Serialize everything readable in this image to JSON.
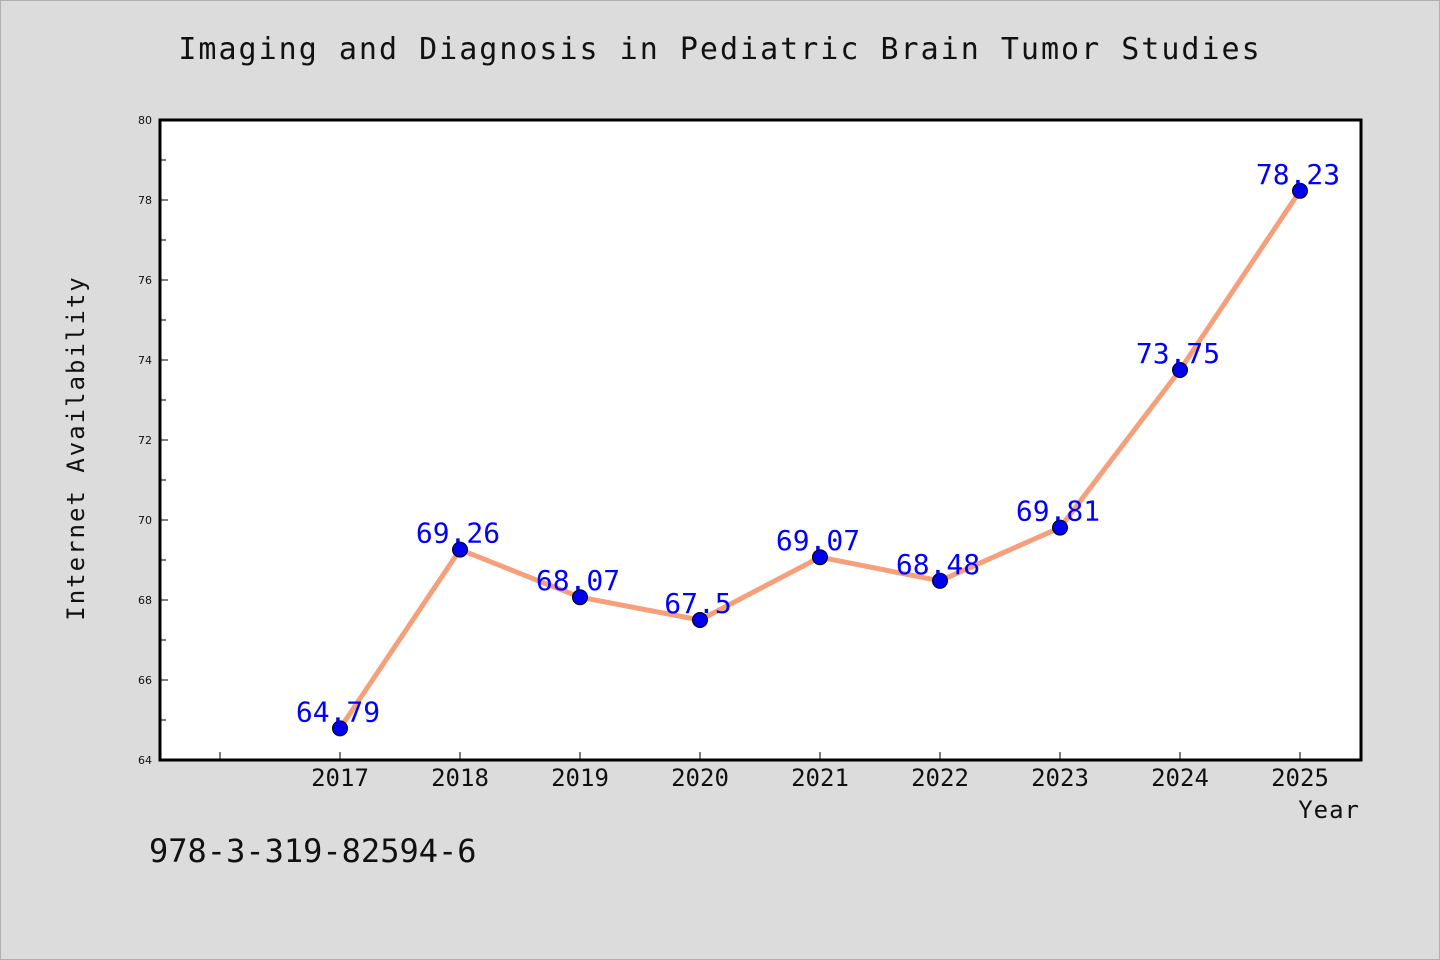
{
  "chart_data": {
    "type": "line",
    "title": "Imaging and Diagnosis in Pediatric Brain Tumor Studies",
    "xlabel": "Year",
    "ylabel": "Internet Availability",
    "categories": [
      "2017",
      "2018",
      "2019",
      "2020",
      "2021",
      "2022",
      "2023",
      "2024",
      "2025"
    ],
    "series": [
      {
        "values": [
          64.79,
          69.26,
          68.07,
          67.5,
          69.07,
          68.48,
          69.81,
          73.75,
          78.23
        ],
        "data_labels": [
          "64.79",
          "69.26",
          "68.07",
          "67.5",
          "69.07",
          "68.48",
          "69.81",
          "73.75",
          "78.23"
        ]
      }
    ],
    "ylim": [
      64,
      80
    ],
    "yticks": [
      "64",
      "66",
      "68",
      "70",
      "72",
      "74",
      "76",
      "78",
      "80"
    ],
    "grid": false,
    "line_color": "#f5a07a",
    "marker_color": "#0000ee",
    "label_color": "#0000ff"
  },
  "footnote": "978-3-319-82594-6"
}
